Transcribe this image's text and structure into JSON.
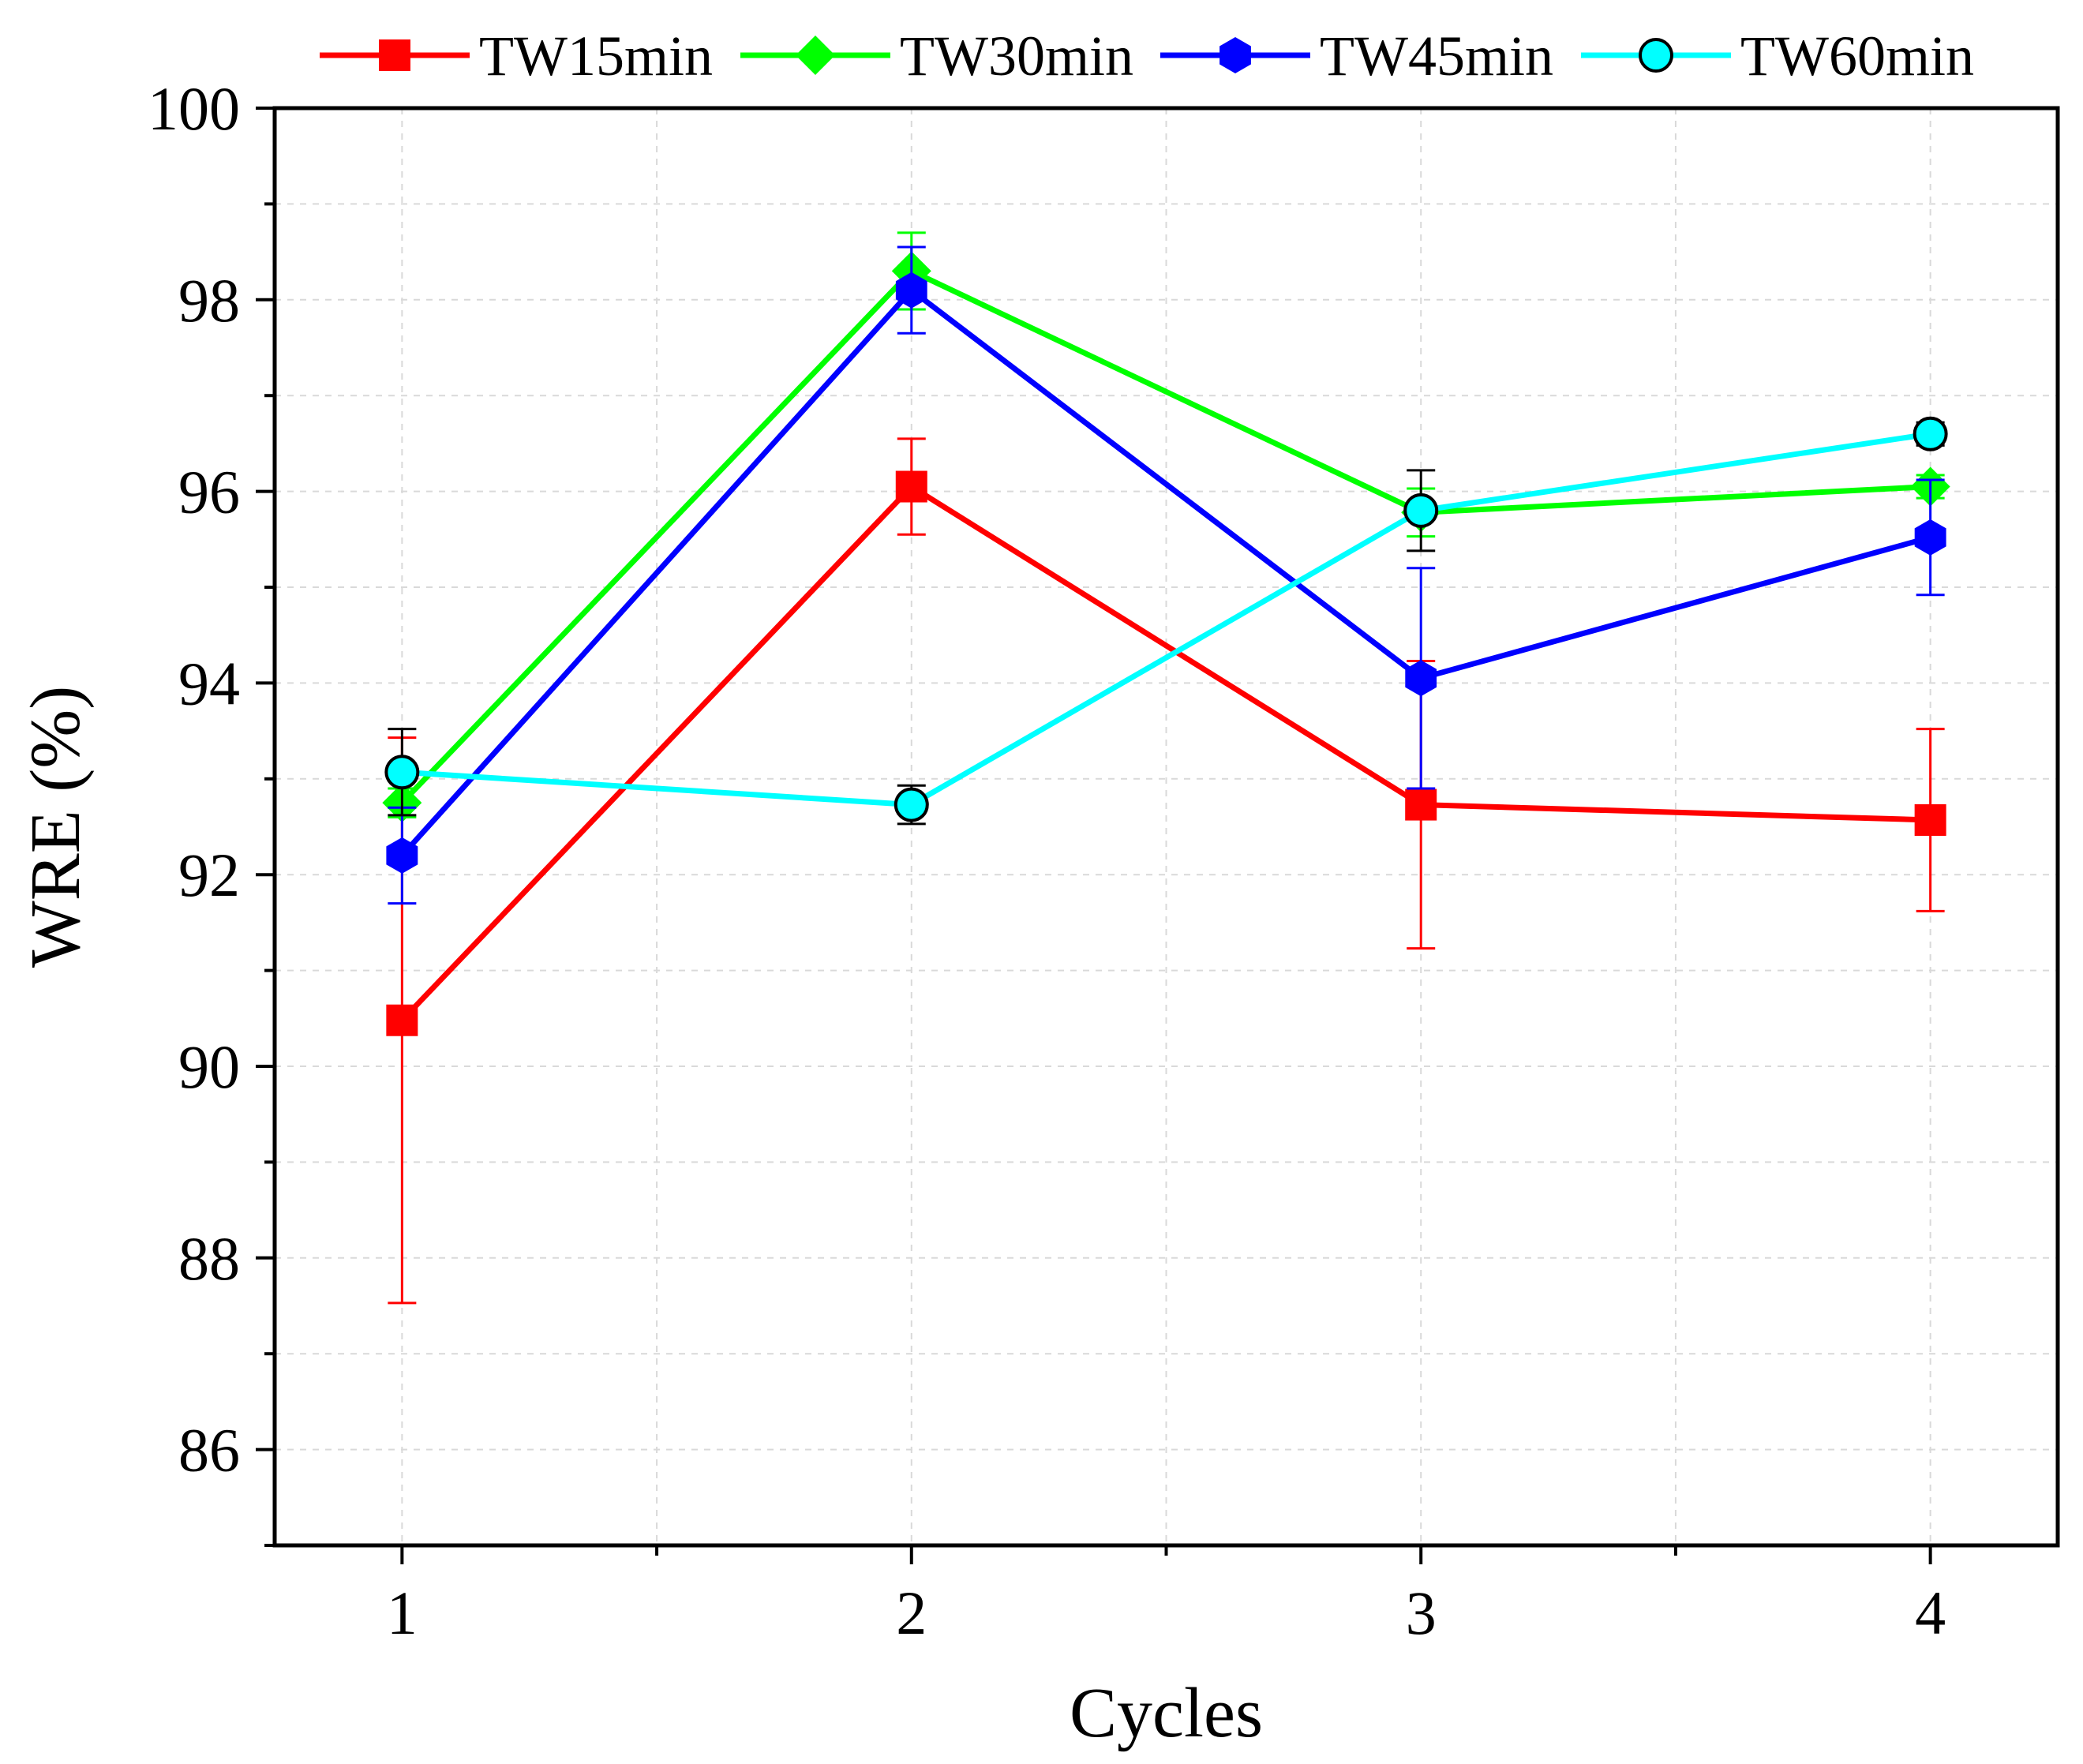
{
  "chart_data": {
    "type": "line",
    "title": "",
    "xlabel": "Cycles",
    "ylabel": "WRE (%)",
    "x": [
      1,
      2,
      3,
      4
    ],
    "x_tick_labels": [
      "1",
      "2",
      "3",
      "4"
    ],
    "xlim": [
      0.75,
      4.25
    ],
    "ylim": [
      85,
      100
    ],
    "y_ticks": [
      86,
      88,
      90,
      92,
      94,
      96,
      98,
      100
    ],
    "y_tick_labels": [
      "86",
      "88",
      "90",
      "92",
      "94",
      "96",
      "98",
      "100"
    ],
    "grid": true,
    "legend_position": "top",
    "series": [
      {
        "name": "TW15min",
        "color": "#ff0000",
        "marker": "square",
        "values": [
          90.48,
          96.05,
          92.73,
          92.57
        ],
        "errors": [
          2.95,
          0.5,
          1.5,
          0.95
        ]
      },
      {
        "name": "TW30min",
        "color": "#00ff00",
        "marker": "diamond",
        "values": [
          92.75,
          98.3,
          95.78,
          96.05
        ],
        "errors": [
          0.15,
          0.4,
          0.25,
          0.12
        ]
      },
      {
        "name": "TW45min",
        "color": "#0000ff",
        "marker": "hexagon",
        "values": [
          92.2,
          98.1,
          94.05,
          95.52
        ],
        "errors": [
          0.5,
          0.45,
          1.15,
          0.6
        ]
      },
      {
        "name": "TW60min",
        "color": "#00ffff",
        "marker": "circle",
        "values": [
          93.07,
          92.73,
          95.8,
          96.6
        ],
        "errors": [
          0.45,
          0.2,
          0.42,
          0.12
        ]
      }
    ]
  }
}
